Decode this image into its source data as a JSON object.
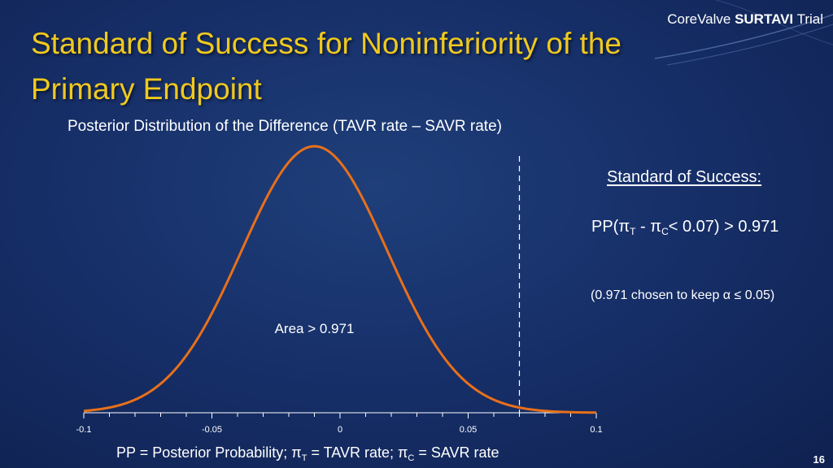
{
  "brand": {
    "prefix": "CoreValve ",
    "bold": "SURTAVI",
    "suffix": " Trial"
  },
  "title": "Standard of Success for Noninferiority of the Primary Endpoint",
  "subtitle": "Posterior Distribution of the Difference (TAVR rate – SAVR rate)",
  "standard": {
    "heading": "Standard of Success:",
    "formula_pp": "PP(π",
    "formula_t": "T",
    "formula_minus": " - π",
    "formula_c": "C",
    "formula_rest": "< 0.07) > 0.971",
    "note": "(0.971 chosen to keep α ≤ 0.05)"
  },
  "footnote": {
    "part1": "PP = Posterior Probability; π",
    "t": "T",
    "part2": " = TAVR rate; π",
    "c": "C",
    "part3": " = SAVR rate"
  },
  "page_number": "16",
  "colors": {
    "title": "#f0c91e",
    "curve": "#e8701a",
    "background": "#17306a"
  },
  "chart_data": {
    "type": "line",
    "curve": "normal density",
    "mean": -0.01,
    "sd": 0.0285,
    "xlim": [
      -0.1,
      0.1
    ],
    "ticks": [
      -0.1,
      -0.05,
      0,
      0.05,
      0.1
    ],
    "tick_labels": [
      "-0.1",
      "-0.05",
      "0",
      "0.05",
      "0.1"
    ],
    "minor_tick_step": 0.01,
    "threshold": 0.07,
    "threshold_style": "dashed",
    "annotation": "Area > 0.971"
  }
}
